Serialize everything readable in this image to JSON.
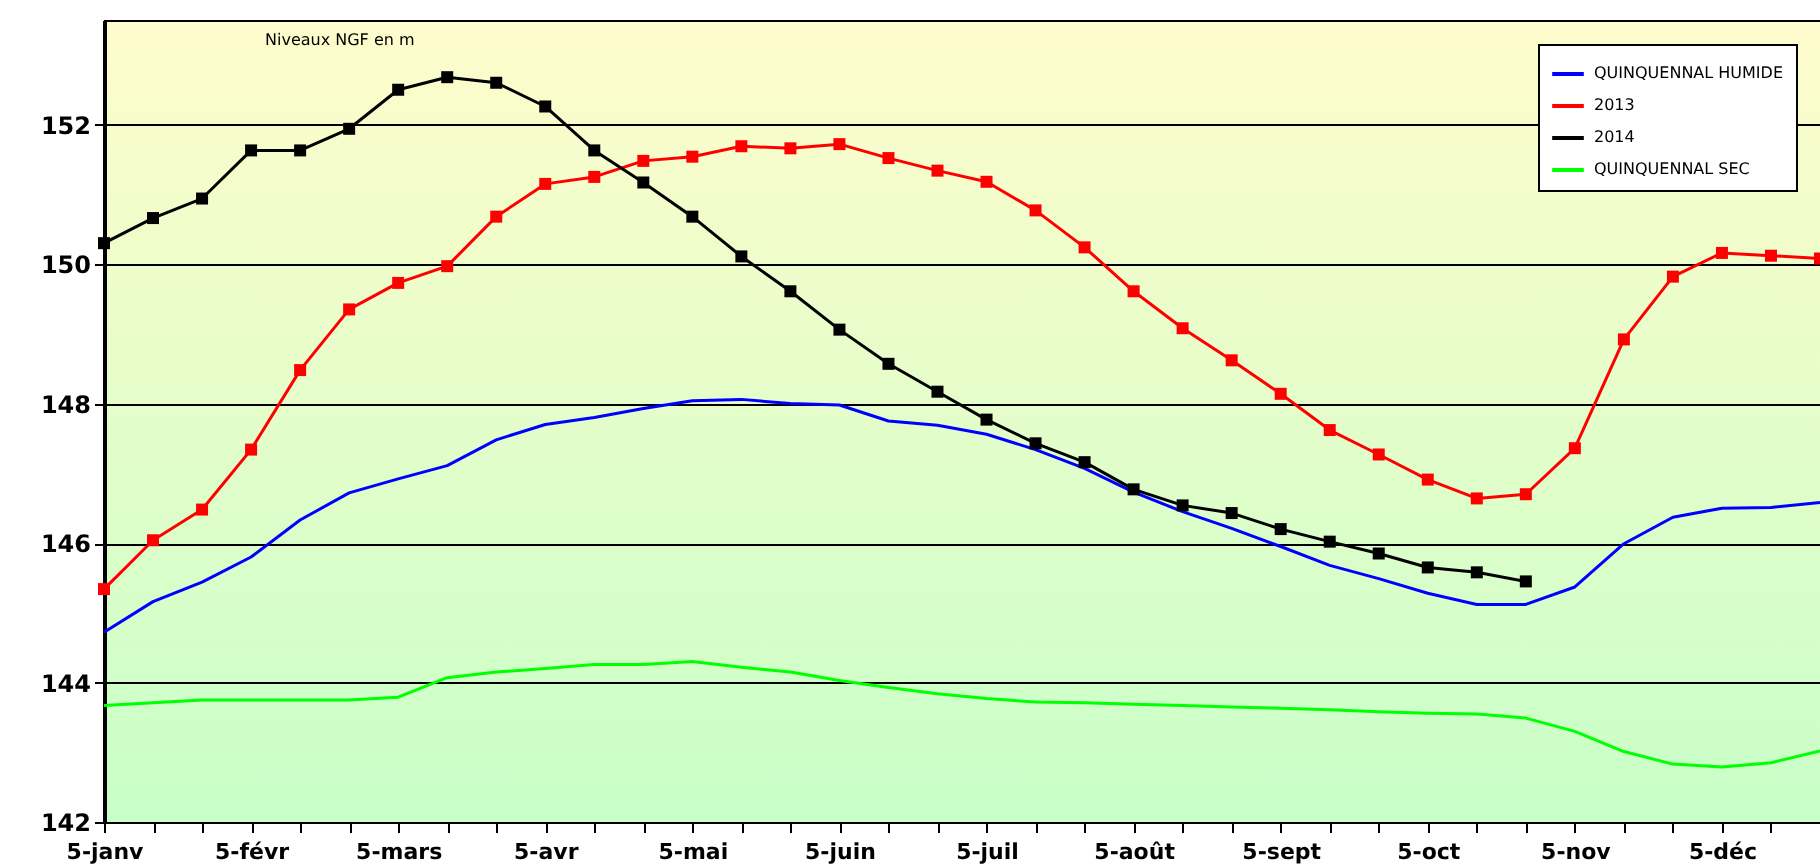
{
  "chart_data": {
    "type": "line",
    "ylabel": "Niveaux NGF en m",
    "categories": [
      "5-janv",
      null,
      null,
      "5-févr",
      null,
      null,
      "5-mars",
      null,
      null,
      "5-avr",
      null,
      null,
      "5-mai",
      null,
      null,
      "5-juin",
      null,
      null,
      "5-juil",
      null,
      null,
      "5-août",
      null,
      null,
      "5-sept",
      null,
      null,
      "5-oct",
      null,
      null,
      "5-nov",
      null,
      null,
      "5-déc",
      null,
      null
    ],
    "series": [
      {
        "name": "QUINQUENNAL HUMIDE",
        "color": "#0000ff",
        "marker": "none",
        "values": [
          144.72,
          145.16,
          145.44,
          145.8,
          146.33,
          146.72,
          146.92,
          147.11,
          147.48,
          147.7,
          147.8,
          147.93,
          148.04,
          148.06,
          148.0,
          147.98,
          147.75,
          147.69,
          147.56,
          147.34,
          147.07,
          146.73,
          146.45,
          146.21,
          145.95,
          145.68,
          145.49,
          145.28,
          145.12,
          145.12,
          145.37,
          145.99,
          146.37,
          146.5,
          146.51,
          146.58
        ]
      },
      {
        "name": "2013",
        "color": "#ff0000",
        "marker": "square",
        "values": [
          145.34,
          146.04,
          146.48,
          147.34,
          148.48,
          149.35,
          149.73,
          149.97,
          150.68,
          151.15,
          151.25,
          151.48,
          151.54,
          151.69,
          151.66,
          151.72,
          151.52,
          151.34,
          151.18,
          150.77,
          150.24,
          149.61,
          149.08,
          148.62,
          148.14,
          147.62,
          147.27,
          146.91,
          146.64,
          146.7,
          147.36,
          148.92,
          149.82,
          150.16,
          150.12,
          150.08
        ]
      },
      {
        "name": "2014",
        "color": "#000000",
        "marker": "square",
        "values": [
          150.3,
          150.66,
          150.94,
          151.63,
          151.63,
          151.94,
          152.5,
          152.68,
          152.6,
          152.26,
          151.63,
          151.17,
          150.68,
          150.11,
          149.61,
          149.06,
          148.57,
          148.17,
          147.77,
          147.43,
          147.16,
          146.77,
          146.54,
          146.43,
          146.2,
          146.02,
          145.85,
          145.65,
          145.58,
          145.45,
          null,
          null,
          null,
          null,
          null,
          null
        ]
      },
      {
        "name": "QUINQUENNAL SEC",
        "color": "#00ff00",
        "marker": "none",
        "values": [
          143.67,
          143.71,
          143.75,
          143.75,
          143.75,
          143.75,
          143.79,
          144.07,
          144.15,
          144.2,
          144.26,
          144.26,
          144.3,
          144.22,
          144.15,
          144.03,
          143.93,
          143.84,
          143.77,
          143.72,
          143.71,
          143.69,
          143.67,
          143.65,
          143.63,
          143.61,
          143.58,
          143.56,
          143.55,
          143.49,
          143.3,
          143.01,
          142.83,
          142.79,
          142.85,
          143.02
        ]
      }
    ],
    "ylim": [
      142,
      153.5
    ],
    "yticks": [
      142,
      144,
      146,
      148,
      150,
      152
    ],
    "grid": "y",
    "legend": "top right"
  }
}
